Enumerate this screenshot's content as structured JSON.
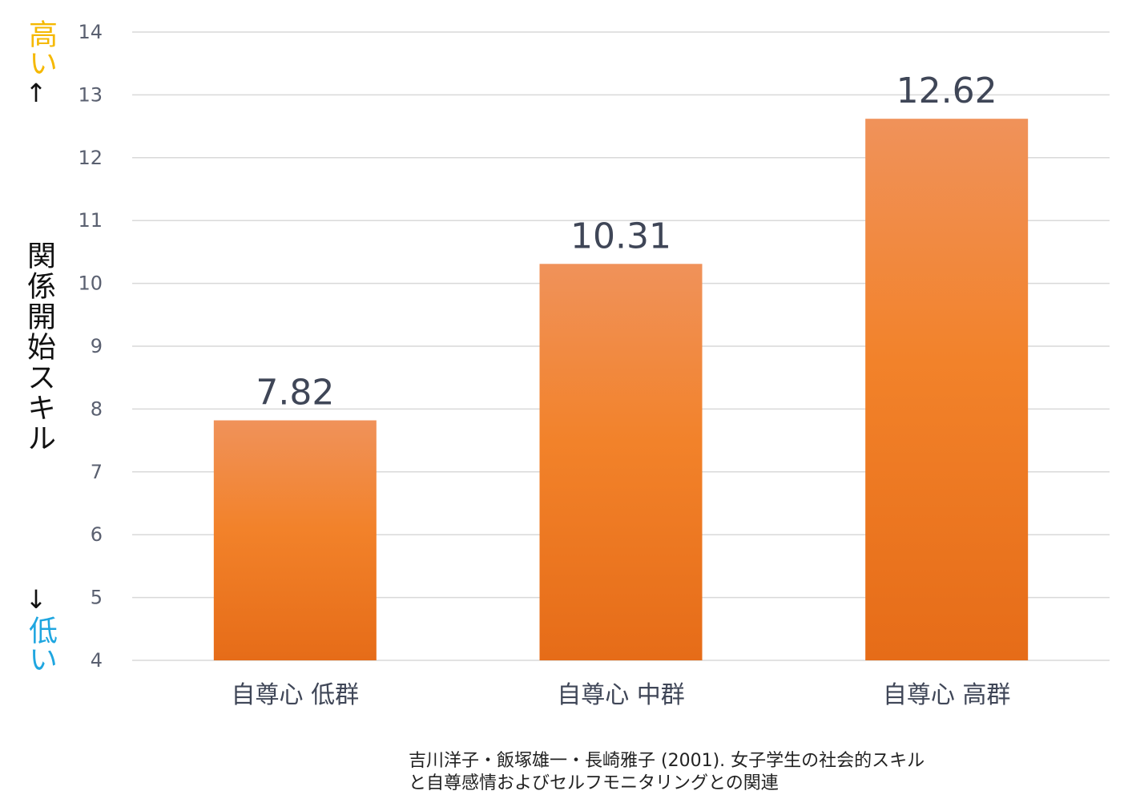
{
  "chart_data": {
    "type": "bar",
    "categories": [
      "自尊心 低群",
      "自尊心 中群",
      "自尊心 高群"
    ],
    "values": [
      7.82,
      10.31,
      12.62
    ],
    "data_labels": [
      "7.82",
      "10.31",
      "12.62"
    ],
    "ylabel": "関係開始スキル",
    "ylim": [
      4,
      14
    ],
    "yticks": [
      4,
      5,
      6,
      7,
      8,
      9,
      10,
      11,
      12,
      13,
      14
    ],
    "grid": true,
    "bar_color_top": "#f0925a",
    "bar_color_bottom": "#e66c18"
  },
  "axis_annotations": {
    "high_label": "高い",
    "up_arrow": "↑",
    "down_arrow": "↓",
    "low_label": "低い",
    "high_color": "#f5b800",
    "low_color": "#1fa6e0"
  },
  "source": {
    "line1": "吉川洋子・飯塚雄一・長崎雅子 (2001). 女子学生の社会的スキル",
    "line2": "と自尊感情およびセルフモニタリングとの関連"
  }
}
